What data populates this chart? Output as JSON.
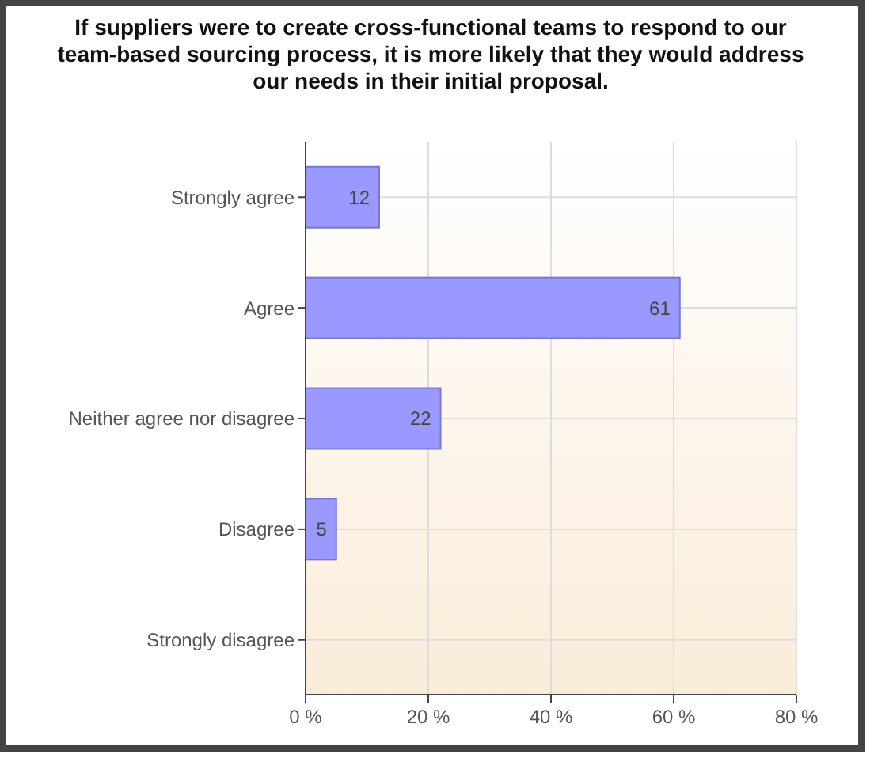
{
  "chart_data": {
    "type": "bar",
    "orientation": "horizontal",
    "title": "If suppliers were to create cross-functional teams to respond to our team-based sourcing process, it is more likely that they would address our needs in their initial proposal.",
    "categories": [
      "Strongly agree",
      "Agree",
      "Neither agree nor disagree",
      "Disagree",
      "Strongly disagree"
    ],
    "values": [
      12,
      61,
      22,
      5,
      0
    ],
    "value_labels": [
      "12",
      "61",
      "22",
      "5",
      null
    ],
    "color": "#9999ff",
    "xlim": [
      0,
      80
    ],
    "xticks": [
      {
        "value": 0,
        "label": "0 %"
      },
      {
        "value": 20,
        "label": "20 %"
      },
      {
        "value": 40,
        "label": "40 %"
      },
      {
        "value": 60,
        "label": "60 %"
      },
      {
        "value": 80,
        "label": "80 %"
      }
    ],
    "grid": true
  }
}
